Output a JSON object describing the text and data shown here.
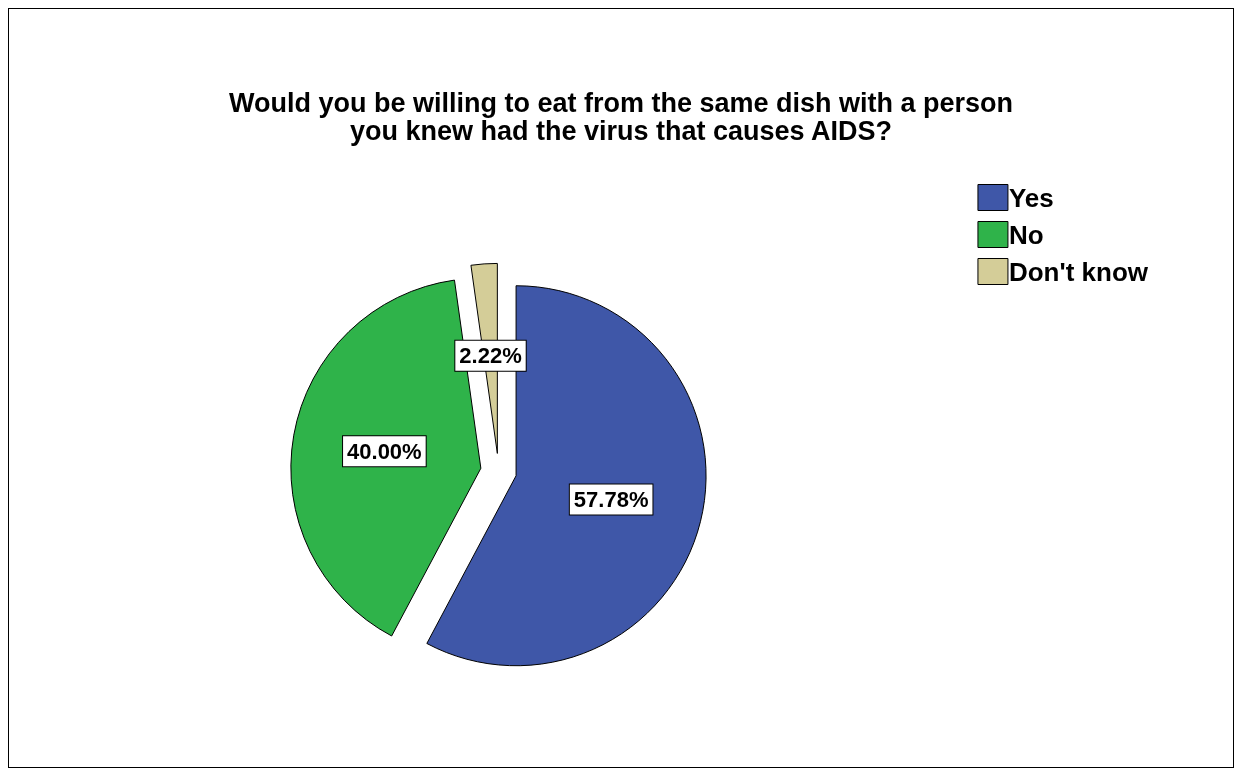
{
  "chart_data": {
    "type": "pie",
    "title": "Would you be willing to eat from the same dish with a person\nyou knew had the virus that causes AIDS?",
    "categories": [
      "Yes",
      "No",
      "Don't know"
    ],
    "values": [
      57.78,
      40.0,
      2.22
    ],
    "value_labels": [
      "57.78%",
      "40.00%",
      "2.22%"
    ],
    "colors": [
      "#3f57a8",
      "#2fb34a",
      "#d4cd98"
    ],
    "legend": "top right"
  }
}
